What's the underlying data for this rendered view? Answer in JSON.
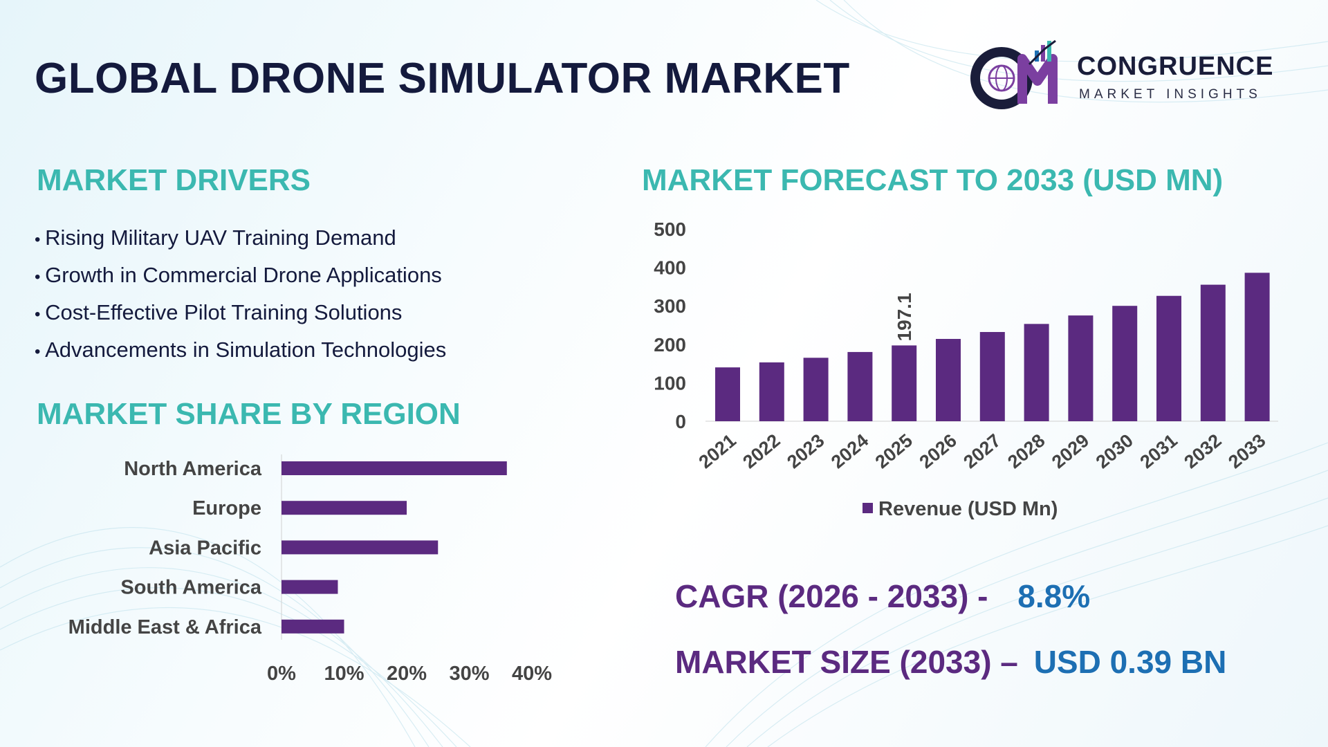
{
  "title": "GLOBAL DRONE SIMULATOR MARKET",
  "logo": {
    "name": "CONGRUENCE",
    "tagline": "MARKET INSIGHTS",
    "icon": "cm-globe-chart-logo"
  },
  "drivers": {
    "heading": "MARKET DRIVERS",
    "items": [
      "Rising Military UAV Training Demand",
      "Growth in Commercial Drone Applications",
      "Cost-Effective Pilot Training Solutions",
      "Advancements in Simulation Technologies"
    ]
  },
  "region": {
    "heading": "MARKET SHARE BY REGION"
  },
  "forecast": {
    "heading": "MARKET FORECAST TO 2033 (USD MN)"
  },
  "kpis": {
    "cagr_label": "CAGR (2026 - 2033) -",
    "cagr_value": "8.8%",
    "size_label": "MARKET SIZE (2033) –",
    "size_value": "USD 0.39 BN"
  },
  "colors": {
    "bar": "#5b2a80",
    "heading": "#3bb8b0",
    "title": "#141a3d",
    "kpi_value": "#1d6fb3"
  },
  "chart_data": [
    {
      "type": "bar",
      "orientation": "horizontal",
      "categories": [
        "North America",
        "Europe",
        "Asia Pacific",
        "South America",
        "Middle East & Africa"
      ],
      "values": [
        36,
        20,
        25,
        9,
        10
      ],
      "xlim": [
        0,
        40
      ],
      "xticks": [
        "0%",
        "10%",
        "20%",
        "30%",
        "40%"
      ],
      "grid": false,
      "legend": "none"
    },
    {
      "type": "bar",
      "categories": [
        "2021",
        "2022",
        "2023",
        "2024",
        "2025",
        "2026",
        "2027",
        "2028",
        "2029",
        "2030",
        "2031",
        "2032",
        "2033"
      ],
      "series": [
        {
          "name": "Revenue (USD Mn)",
          "values": [
            140,
            153,
            165,
            180,
            197.1,
            214,
            232,
            253,
            275,
            300,
            326,
            355,
            386
          ]
        }
      ],
      "data_labels": [
        {
          "category": "2025",
          "text": "197.1"
        }
      ],
      "ylim": [
        0,
        500
      ],
      "yticks": [
        "0",
        "100",
        "200",
        "300",
        "400",
        "500"
      ],
      "grid": false,
      "legend": "bottom"
    }
  ]
}
